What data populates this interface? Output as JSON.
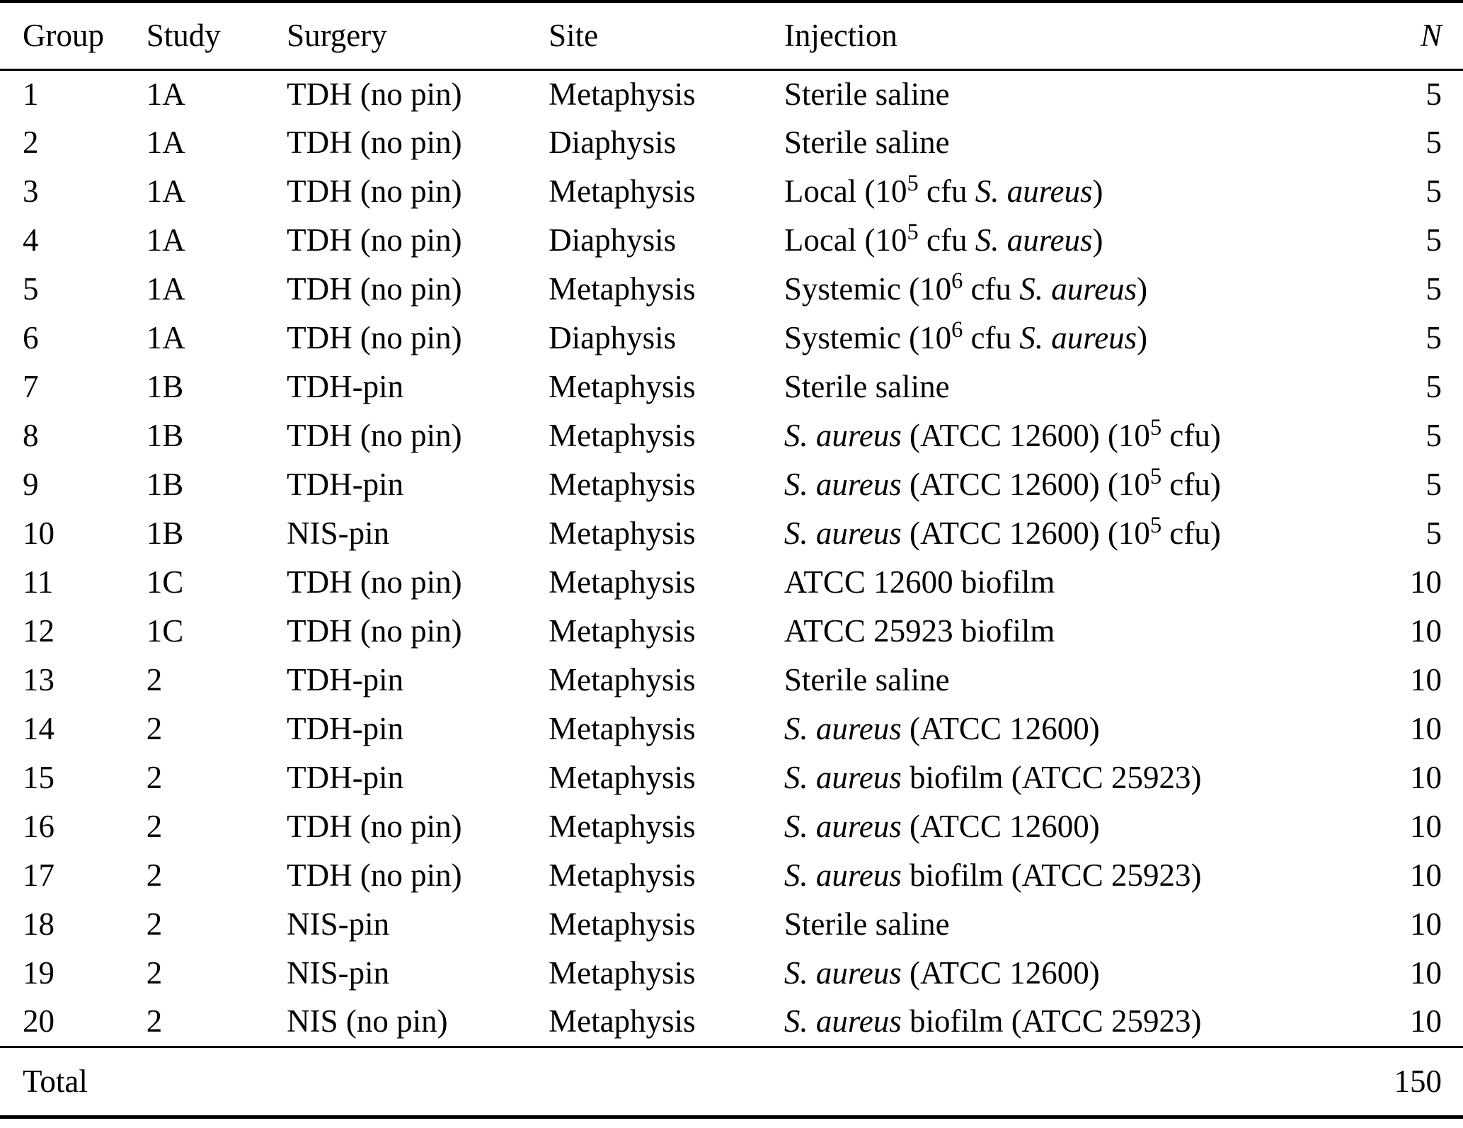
{
  "colors": {
    "text": "#000000",
    "background": "#ffffff",
    "rule": "#000000"
  },
  "table": {
    "columns": [
      {
        "key": "group",
        "label": "Group"
      },
      {
        "key": "study",
        "label": "Study"
      },
      {
        "key": "surgery",
        "label": "Surgery"
      },
      {
        "key": "site",
        "label": "Site"
      },
      {
        "key": "injection",
        "label": "Injection"
      },
      {
        "key": "n",
        "label": "N",
        "italic": true,
        "numeric": true
      }
    ],
    "rows": [
      {
        "group": "1",
        "study": "1A",
        "surgery": "TDH (no pin)",
        "site": "Metaphysis",
        "injection": [
          [
            "t",
            "Sterile saline"
          ]
        ],
        "n": "5"
      },
      {
        "group": "2",
        "study": "1A",
        "surgery": "TDH (no pin)",
        "site": "Diaphysis",
        "injection": [
          [
            "t",
            "Sterile saline"
          ]
        ],
        "n": "5"
      },
      {
        "group": "3",
        "study": "1A",
        "surgery": "TDH (no pin)",
        "site": "Metaphysis",
        "injection": [
          [
            "t",
            "Local (10"
          ],
          [
            "sup",
            "5"
          ],
          [
            "t",
            " cfu "
          ],
          [
            "i",
            "S. aureus"
          ],
          [
            "t",
            ")"
          ]
        ],
        "n": "5"
      },
      {
        "group": "4",
        "study": "1A",
        "surgery": "TDH (no pin)",
        "site": "Diaphysis",
        "injection": [
          [
            "t",
            "Local (10"
          ],
          [
            "sup",
            "5"
          ],
          [
            "t",
            " cfu "
          ],
          [
            "i",
            "S. aureus"
          ],
          [
            "t",
            ")"
          ]
        ],
        "n": "5"
      },
      {
        "group": "5",
        "study": "1A",
        "surgery": "TDH (no pin)",
        "site": "Metaphysis",
        "injection": [
          [
            "t",
            "Systemic (10"
          ],
          [
            "sup",
            "6"
          ],
          [
            "t",
            " cfu "
          ],
          [
            "i",
            "S. aureus"
          ],
          [
            "t",
            ")"
          ]
        ],
        "n": "5"
      },
      {
        "group": "6",
        "study": "1A",
        "surgery": "TDH (no pin)",
        "site": "Diaphysis",
        "injection": [
          [
            "t",
            "Systemic (10"
          ],
          [
            "sup",
            "6"
          ],
          [
            "t",
            " cfu "
          ],
          [
            "i",
            "S. aureus"
          ],
          [
            "t",
            ")"
          ]
        ],
        "n": "5"
      },
      {
        "group": "7",
        "study": "1B",
        "surgery": "TDH-pin",
        "site": "Metaphysis",
        "injection": [
          [
            "t",
            "Sterile saline"
          ]
        ],
        "n": "5"
      },
      {
        "group": "8",
        "study": "1B",
        "surgery": "TDH (no pin)",
        "site": "Metaphysis",
        "injection": [
          [
            "i",
            "S. aureus"
          ],
          [
            "t",
            " (ATCC 12600) (10"
          ],
          [
            "sup",
            "5"
          ],
          [
            "t",
            " cfu)"
          ]
        ],
        "n": "5"
      },
      {
        "group": "9",
        "study": "1B",
        "surgery": "TDH-pin",
        "site": "Metaphysis",
        "injection": [
          [
            "i",
            "S. aureus"
          ],
          [
            "t",
            " (ATCC 12600) (10"
          ],
          [
            "sup",
            "5"
          ],
          [
            "t",
            " cfu)"
          ]
        ],
        "n": "5"
      },
      {
        "group": "10",
        "study": "1B",
        "surgery": "NIS-pin",
        "site": "Metaphysis",
        "injection": [
          [
            "i",
            "S. aureus"
          ],
          [
            "t",
            " (ATCC 12600) (10"
          ],
          [
            "sup",
            "5"
          ],
          [
            "t",
            " cfu)"
          ]
        ],
        "n": "5"
      },
      {
        "group": "11",
        "study": "1C",
        "surgery": "TDH (no pin)",
        "site": "Metaphysis",
        "injection": [
          [
            "t",
            "ATCC 12600 biofilm"
          ]
        ],
        "n": "10"
      },
      {
        "group": "12",
        "study": "1C",
        "surgery": "TDH (no pin)",
        "site": "Metaphysis",
        "injection": [
          [
            "t",
            "ATCC 25923 biofilm"
          ]
        ],
        "n": "10"
      },
      {
        "group": "13",
        "study": "2",
        "surgery": "TDH-pin",
        "site": "Metaphysis",
        "injection": [
          [
            "t",
            "Sterile saline"
          ]
        ],
        "n": "10"
      },
      {
        "group": "14",
        "study": "2",
        "surgery": "TDH-pin",
        "site": "Metaphysis",
        "injection": [
          [
            "i",
            "S. aureus"
          ],
          [
            "t",
            " (ATCC 12600)"
          ]
        ],
        "n": "10"
      },
      {
        "group": "15",
        "study": "2",
        "surgery": "TDH-pin",
        "site": "Metaphysis",
        "injection": [
          [
            "i",
            "S. aureus"
          ],
          [
            "t",
            " biofilm (ATCC 25923)"
          ]
        ],
        "n": "10"
      },
      {
        "group": "16",
        "study": "2",
        "surgery": "TDH (no pin)",
        "site": "Metaphysis",
        "injection": [
          [
            "i",
            "S. aureus"
          ],
          [
            "t",
            " (ATCC 12600)"
          ]
        ],
        "n": "10"
      },
      {
        "group": "17",
        "study": "2",
        "surgery": "TDH (no pin)",
        "site": "Metaphysis",
        "injection": [
          [
            "i",
            "S. aureus"
          ],
          [
            "t",
            " biofilm (ATCC 25923)"
          ]
        ],
        "n": "10"
      },
      {
        "group": "18",
        "study": "2",
        "surgery": "NIS-pin",
        "site": "Metaphysis",
        "injection": [
          [
            "t",
            "Sterile saline"
          ]
        ],
        "n": "10"
      },
      {
        "group": "19",
        "study": "2",
        "surgery": "NIS-pin",
        "site": "Metaphysis",
        "injection": [
          [
            "i",
            "S. aureus"
          ],
          [
            "t",
            " (ATCC 12600)"
          ]
        ],
        "n": "10"
      },
      {
        "group": "20",
        "study": "2",
        "surgery": "NIS (no pin)",
        "site": "Metaphysis",
        "injection": [
          [
            "i",
            "S. aureus"
          ],
          [
            "t",
            " biofilm (ATCC 25923)"
          ]
        ],
        "n": "10"
      }
    ],
    "total": {
      "label": "Total",
      "value": "150"
    }
  }
}
